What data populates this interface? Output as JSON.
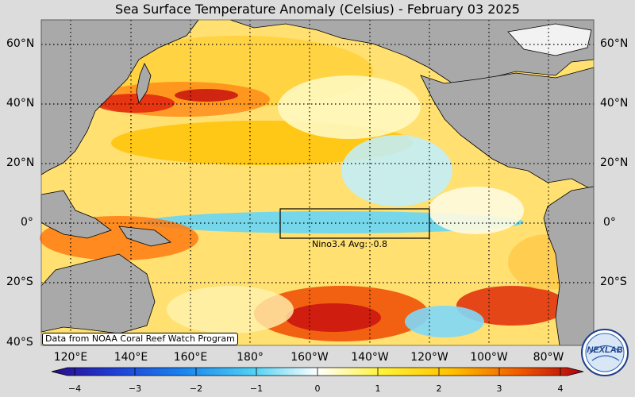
{
  "title": "Sea Surface Temperature Anomaly (Celsius) - February 03 2025",
  "lat_labels": [
    "60°N",
    "40°N",
    "20°N",
    "0°",
    "20°S",
    "40°S"
  ],
  "lon_labels": [
    "120°E",
    "140°E",
    "160°E",
    "180°",
    "160°W",
    "140°W",
    "120°W",
    "100°W",
    "80°W"
  ],
  "credit": "Data from NOAA Coral Reef Watch Program",
  "nino_label": "Nino3.4 Avg: -0.8",
  "colorbar": {
    "ticks": [
      "−4",
      "−3",
      "−2",
      "−1",
      "0",
      "1",
      "2",
      "3",
      "4"
    ],
    "colors": [
      "#2a0a8c",
      "#1f3fd6",
      "#1a86f0",
      "#4fd2f4",
      "#ffffff",
      "#fff23a",
      "#ffc200",
      "#f05a00",
      "#b0000d"
    ]
  },
  "colors": {
    "land": "#a9a9a9",
    "background": "#dcdcdc"
  },
  "logo_text": "NEXLAB"
}
